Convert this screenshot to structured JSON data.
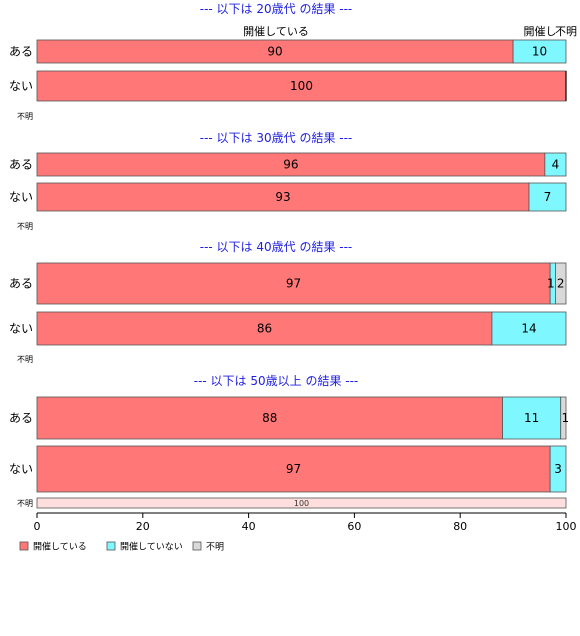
{
  "colors": {
    "held": "#ff7777",
    "not_held": "#7ff7ff",
    "unknown": "#d9d9d9",
    "unknown_light": "#ffdede",
    "title": "#1f1fe0"
  },
  "chart_data": {
    "type": "bar",
    "orientation": "horizontal-stacked-100",
    "xlim": [
      0,
      100
    ],
    "x_ticks": [
      "0",
      "20",
      "40",
      "60",
      "80",
      "100"
    ],
    "series_names": [
      "開催している",
      "開催していない",
      "不明"
    ],
    "segment_headers": [
      "開催している",
      "開催し",
      "不明"
    ],
    "legend": [
      "開催している",
      "開催していない",
      "不明"
    ],
    "legend_position": "bottom-left",
    "groups": [
      {
        "title": "--- 以下は 20歳代 の結果 ---",
        "rows": [
          {
            "label": "ある",
            "values": [
              90,
              10,
              0
            ],
            "labels": [
              "90",
              "10",
              ""
            ]
          },
          {
            "label": "ない",
            "values": [
              100,
              0,
              0
            ],
            "labels": [
              "100",
              "",
              ""
            ]
          },
          {
            "label": "不明",
            "values": [
              0,
              0,
              0
            ],
            "labels": [
              "",
              "",
              ""
            ]
          }
        ]
      },
      {
        "title": "--- 以下は 30歳代 の結果 ---",
        "rows": [
          {
            "label": "ある",
            "values": [
              96,
              4,
              0
            ],
            "labels": [
              "96",
              "4",
              ""
            ]
          },
          {
            "label": "ない",
            "values": [
              93,
              7,
              0
            ],
            "labels": [
              "93",
              "7",
              ""
            ]
          },
          {
            "label": "不明",
            "values": [
              0,
              0,
              0
            ],
            "labels": [
              "",
              "",
              ""
            ]
          }
        ]
      },
      {
        "title": "--- 以下は 40歳代 の結果 ---",
        "rows": [
          {
            "label": "ある",
            "values": [
              97,
              1,
              2
            ],
            "labels": [
              "97",
              "1",
              "2"
            ]
          },
          {
            "label": "ない",
            "values": [
              86,
              14,
              0
            ],
            "labels": [
              "86",
              "14",
              ""
            ]
          },
          {
            "label": "不明",
            "values": [
              0,
              0,
              0
            ],
            "labels": [
              "",
              "",
              ""
            ]
          }
        ]
      },
      {
        "title": "--- 以下は 50歳以上 の結果 ---",
        "rows": [
          {
            "label": "ある",
            "values": [
              88,
              11,
              1
            ],
            "labels": [
              "88",
              "11",
              "1"
            ]
          },
          {
            "label": "ない",
            "values": [
              97,
              3,
              0
            ],
            "labels": [
              "97",
              "3",
              ""
            ]
          },
          {
            "label": "不明",
            "values": [
              100,
              0,
              0
            ],
            "labels": [
              "100",
              "",
              ""
            ]
          }
        ]
      }
    ]
  }
}
